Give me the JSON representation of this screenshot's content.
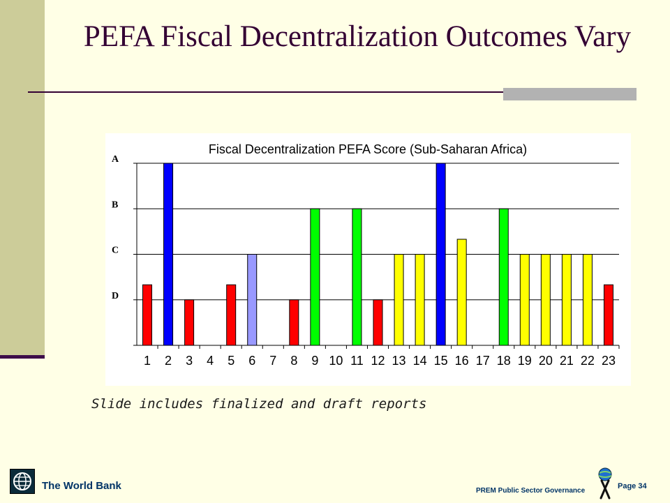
{
  "slide": {
    "title": "PEFA Fiscal Decentralization Outcomes Vary",
    "note": "Slide includes finalized and draft reports"
  },
  "footer": {
    "org": "The World Bank",
    "unit": "PREM Public Sector Governance",
    "page": "Page 34"
  },
  "colors": {
    "background": "#FFFFE6",
    "sidebar": "#CCCC99",
    "title": "#330033",
    "red": "#FF0000",
    "blue": "#0000FF",
    "lightblue": "#9999FF",
    "green": "#00FF00",
    "yellow": "#FFFF00"
  },
  "chart_data": {
    "type": "bar",
    "title": "Fiscal Decentralization PEFA Score (Sub-Saharan Africa)",
    "xlabel": "",
    "ylabel": "",
    "categories": [
      "1",
      "2",
      "3",
      "4",
      "5",
      "6",
      "7",
      "8",
      "9",
      "10",
      "11",
      "12",
      "13",
      "14",
      "15",
      "16",
      "17",
      "18",
      "19",
      "20",
      "21",
      "22",
      "23"
    ],
    "values": [
      1.33,
      4,
      1,
      0,
      1.33,
      2,
      0,
      1,
      3,
      0,
      3,
      1,
      2,
      2,
      4,
      2.33,
      0,
      3,
      2,
      2,
      2,
      2,
      1.33
    ],
    "bar_colors": [
      "red",
      "blue",
      "red",
      "",
      "red",
      "lightblue",
      "",
      "red",
      "green",
      "",
      "green",
      "red",
      "yellow",
      "yellow",
      "blue",
      "yellow",
      "",
      "green",
      "yellow",
      "yellow",
      "yellow",
      "yellow",
      "red"
    ],
    "y_ticks": [
      {
        "value": 1,
        "label": "D"
      },
      {
        "value": 2,
        "label": "C"
      },
      {
        "value": 3,
        "label": "B"
      },
      {
        "value": 4,
        "label": "A"
      }
    ],
    "ylim": [
      0,
      4
    ],
    "grid": true
  }
}
